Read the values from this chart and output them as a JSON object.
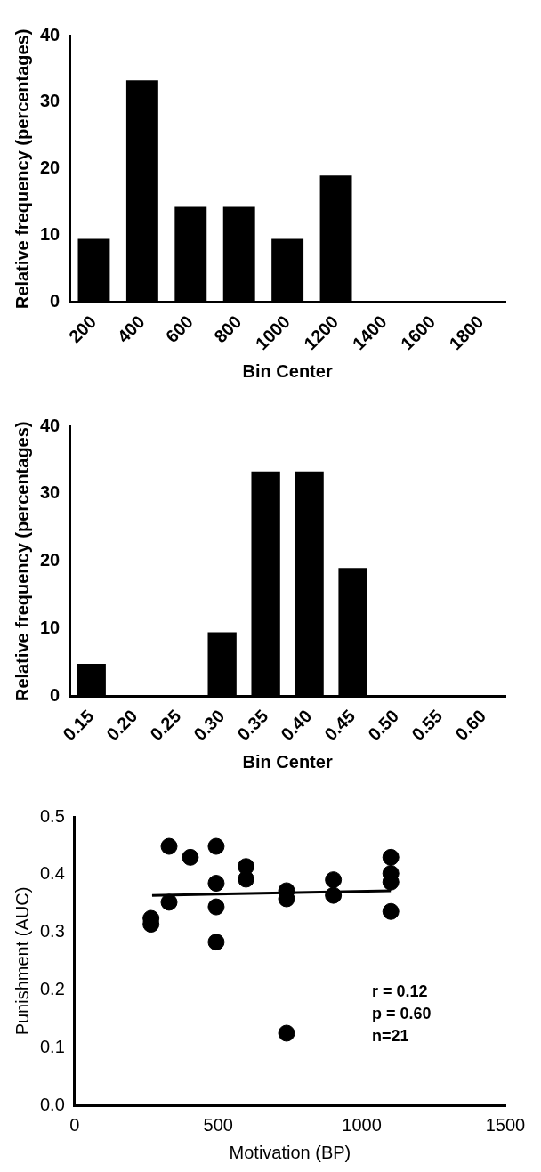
{
  "chart_data": [
    {
      "type": "bar",
      "xlabel": "Bin Center",
      "ylabel": "Relative frequency (percentages)",
      "categories": [
        "200",
        "400",
        "600",
        "800",
        "1000",
        "1200",
        "1400",
        "1600",
        "1800"
      ],
      "values": [
        9.5,
        33.3,
        14.3,
        14.3,
        9.5,
        19.0,
        0,
        0,
        0
      ],
      "color": "#000000",
      "ylim": [
        0,
        40
      ],
      "yticks": [
        0,
        10,
        20,
        30,
        40
      ]
    },
    {
      "type": "bar",
      "xlabel": "Bin Center",
      "ylabel": "Relative frequency (percentages)",
      "categories": [
        "0.15",
        "0.20",
        "0.25",
        "0.30",
        "0.35",
        "0.40",
        "0.45",
        "0.50",
        "0.55",
        "0.60"
      ],
      "values": [
        4.8,
        0,
        0,
        9.5,
        33.3,
        33.3,
        19.0,
        0,
        0,
        0
      ],
      "color": "#000000",
      "ylim": [
        0,
        40
      ],
      "yticks": [
        0,
        10,
        20,
        30,
        40
      ]
    },
    {
      "type": "scatter",
      "xlabel": "Motivation (BP)",
      "ylabel": "Punishment (AUC)",
      "xlim": [
        0,
        1500
      ],
      "xticks": [
        0,
        500,
        1000,
        1500
      ],
      "ylim": [
        0,
        0.5
      ],
      "yticks": [
        {
          "value": 0,
          "label": "0.0"
        },
        0.1,
        0.2,
        0.3,
        0.4,
        0.5
      ],
      "series": [
        {
          "type": "scatter",
          "marker": "circle",
          "color": "#000000",
          "x": [
            266,
            266,
            329,
            329,
            403,
            493,
            493,
            493,
            493,
            597,
            597,
            738,
            738,
            738,
            901,
            901,
            1101,
            1101,
            1101,
            1101
          ],
          "values": [
            0.324,
            0.314,
            0.449,
            0.352,
            0.43,
            0.449,
            0.385,
            0.344,
            0.283,
            0.414,
            0.392,
            0.372,
            0.358,
            0.125,
            0.391,
            0.364,
            0.43,
            0.402,
            0.387,
            0.336
          ]
        },
        {
          "type": "line",
          "marker": "none",
          "color": "#000000",
          "x": [
            270,
            1101
          ],
          "values": [
            0.364,
            0.372
          ]
        }
      ],
      "annotations": [
        "r = 0.12",
        "p = 0.60",
        "n=21"
      ]
    }
  ]
}
